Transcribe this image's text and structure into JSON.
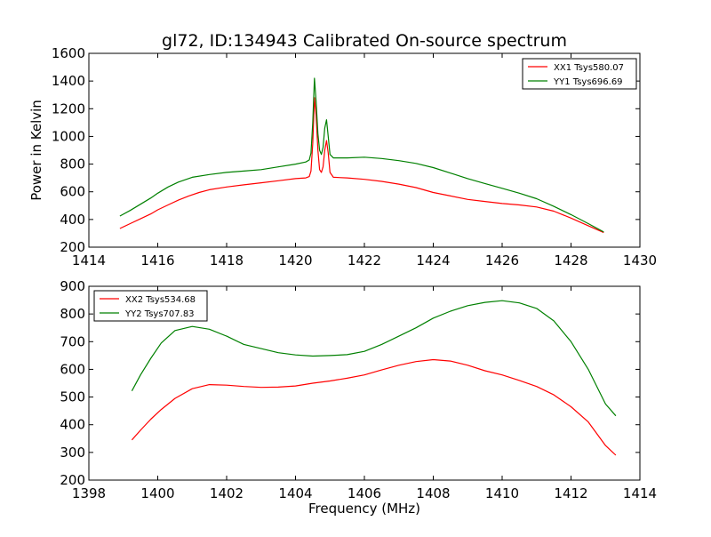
{
  "title": "gl72, ID:134943 Calibrated On-source spectrum",
  "chart_data": [
    {
      "type": "line",
      "ylabel": "Power in Kelvin",
      "xlabel": "",
      "xlim": [
        1414,
        1430
      ],
      "ylim": [
        200,
        1600
      ],
      "xticks": [
        1414,
        1416,
        1418,
        1420,
        1422,
        1424,
        1426,
        1428,
        1430
      ],
      "yticks": [
        200,
        400,
        600,
        800,
        1000,
        1200,
        1400,
        1600
      ],
      "grid": false,
      "legend_position": "top-right",
      "series": [
        {
          "name": "XX1 Tsys580.07",
          "color": "#ff0000",
          "points": [
            [
              1414.9,
              335
            ],
            [
              1415.2,
              370
            ],
            [
              1415.5,
              405
            ],
            [
              1415.8,
              440
            ],
            [
              1416.0,
              470
            ],
            [
              1416.3,
              505
            ],
            [
              1416.6,
              540
            ],
            [
              1416.9,
              570
            ],
            [
              1417.2,
              595
            ],
            [
              1417.5,
              615
            ],
            [
              1418.0,
              635
            ],
            [
              1418.5,
              650
            ],
            [
              1419.0,
              665
            ],
            [
              1419.5,
              680
            ],
            [
              1420.0,
              695
            ],
            [
              1420.3,
              700
            ],
            [
              1420.4,
              710
            ],
            [
              1420.45,
              750
            ],
            [
              1420.5,
              950
            ],
            [
              1420.55,
              1280
            ],
            [
              1420.6,
              1150
            ],
            [
              1420.65,
              900
            ],
            [
              1420.7,
              760
            ],
            [
              1420.75,
              740
            ],
            [
              1420.8,
              780
            ],
            [
              1420.85,
              900
            ],
            [
              1420.9,
              970
            ],
            [
              1420.95,
              880
            ],
            [
              1421.0,
              740
            ],
            [
              1421.1,
              705
            ],
            [
              1421.5,
              700
            ],
            [
              1422.0,
              690
            ],
            [
              1422.5,
              675
            ],
            [
              1423.0,
              655
            ],
            [
              1423.5,
              630
            ],
            [
              1424.0,
              595
            ],
            [
              1424.5,
              570
            ],
            [
              1425.0,
              545
            ],
            [
              1425.5,
              530
            ],
            [
              1426.0,
              515
            ],
            [
              1426.5,
              505
            ],
            [
              1427.0,
              490
            ],
            [
              1427.5,
              460
            ],
            [
              1428.0,
              410
            ],
            [
              1428.5,
              355
            ],
            [
              1428.95,
              305
            ]
          ]
        },
        {
          "name": "YY1 Tsys696.69",
          "color": "#008000",
          "points": [
            [
              1414.9,
              425
            ],
            [
              1415.2,
              465
            ],
            [
              1415.5,
              510
            ],
            [
              1415.8,
              555
            ],
            [
              1416.0,
              590
            ],
            [
              1416.3,
              635
            ],
            [
              1416.6,
              670
            ],
            [
              1417.0,
              705
            ],
            [
              1417.5,
              725
            ],
            [
              1418.0,
              740
            ],
            [
              1418.5,
              750
            ],
            [
              1419.0,
              760
            ],
            [
              1419.5,
              780
            ],
            [
              1420.0,
              800
            ],
            [
              1420.3,
              815
            ],
            [
              1420.4,
              830
            ],
            [
              1420.45,
              880
            ],
            [
              1420.5,
              1100
            ],
            [
              1420.55,
              1420
            ],
            [
              1420.6,
              1250
            ],
            [
              1420.65,
              1020
            ],
            [
              1420.7,
              900
            ],
            [
              1420.75,
              870
            ],
            [
              1420.8,
              920
            ],
            [
              1420.85,
              1060
            ],
            [
              1420.9,
              1120
            ],
            [
              1420.95,
              1000
            ],
            [
              1421.0,
              870
            ],
            [
              1421.1,
              845
            ],
            [
              1421.5,
              845
            ],
            [
              1422.0,
              850
            ],
            [
              1422.5,
              840
            ],
            [
              1423.0,
              825
            ],
            [
              1423.5,
              805
            ],
            [
              1424.0,
              775
            ],
            [
              1424.5,
              735
            ],
            [
              1425.0,
              695
            ],
            [
              1425.5,
              660
            ],
            [
              1426.0,
              625
            ],
            [
              1426.5,
              590
            ],
            [
              1427.0,
              550
            ],
            [
              1427.5,
              495
            ],
            [
              1428.0,
              435
            ],
            [
              1428.5,
              370
            ],
            [
              1428.95,
              310
            ]
          ]
        }
      ]
    },
    {
      "type": "line",
      "ylabel": "",
      "xlabel": "Frequency (MHz)",
      "xlim": [
        1398,
        1414
      ],
      "ylim": [
        200,
        900
      ],
      "xticks": [
        1398,
        1400,
        1402,
        1404,
        1406,
        1408,
        1410,
        1412,
        1414
      ],
      "yticks": [
        200,
        300,
        400,
        500,
        600,
        700,
        800,
        900
      ],
      "grid": false,
      "legend_position": "top-left",
      "series": [
        {
          "name": "XX2 Tsys534.68",
          "color": "#ff0000",
          "points": [
            [
              1399.25,
              345
            ],
            [
              1399.5,
              380
            ],
            [
              1399.8,
              420
            ],
            [
              1400.1,
              455
            ],
            [
              1400.5,
              495
            ],
            [
              1401.0,
              530
            ],
            [
              1401.5,
              545
            ],
            [
              1402.0,
              543
            ],
            [
              1402.5,
              538
            ],
            [
              1403.0,
              535
            ],
            [
              1403.5,
              536
            ],
            [
              1404.0,
              540
            ],
            [
              1404.5,
              550
            ],
            [
              1405.0,
              558
            ],
            [
              1405.5,
              568
            ],
            [
              1406.0,
              580
            ],
            [
              1406.5,
              598
            ],
            [
              1407.0,
              615
            ],
            [
              1407.5,
              628
            ],
            [
              1408.0,
              635
            ],
            [
              1408.5,
              630
            ],
            [
              1409.0,
              615
            ],
            [
              1409.5,
              595
            ],
            [
              1410.0,
              580
            ],
            [
              1410.5,
              560
            ],
            [
              1411.0,
              538
            ],
            [
              1411.5,
              508
            ],
            [
              1412.0,
              465
            ],
            [
              1412.5,
              410
            ],
            [
              1413.0,
              325
            ],
            [
              1413.3,
              290
            ]
          ]
        },
        {
          "name": "YY2 Tsys707.83",
          "color": "#008000",
          "points": [
            [
              1399.25,
              522
            ],
            [
              1399.5,
              580
            ],
            [
              1399.8,
              640
            ],
            [
              1400.1,
              695
            ],
            [
              1400.5,
              740
            ],
            [
              1401.0,
              755
            ],
            [
              1401.5,
              745
            ],
            [
              1402.0,
              720
            ],
            [
              1402.5,
              690
            ],
            [
              1403.0,
              675
            ],
            [
              1403.5,
              660
            ],
            [
              1404.0,
              652
            ],
            [
              1404.5,
              648
            ],
            [
              1405.0,
              650
            ],
            [
              1405.5,
              653
            ],
            [
              1406.0,
              665
            ],
            [
              1406.5,
              690
            ],
            [
              1407.0,
              720
            ],
            [
              1407.5,
              750
            ],
            [
              1408.0,
              785
            ],
            [
              1408.5,
              810
            ],
            [
              1409.0,
              830
            ],
            [
              1409.5,
              842
            ],
            [
              1410.0,
              848
            ],
            [
              1410.5,
              840
            ],
            [
              1411.0,
              820
            ],
            [
              1411.5,
              775
            ],
            [
              1412.0,
              700
            ],
            [
              1412.5,
              600
            ],
            [
              1413.0,
              475
            ],
            [
              1413.3,
              432
            ]
          ]
        }
      ]
    }
  ]
}
